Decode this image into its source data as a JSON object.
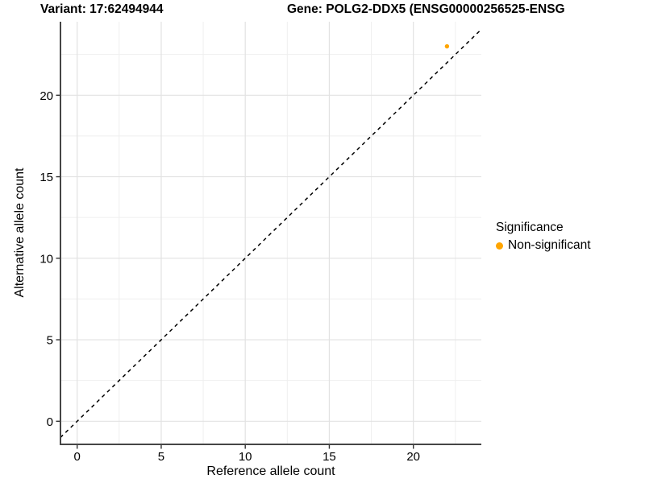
{
  "header": {
    "title_left": "Variant: 17:62494944",
    "title_right": "Gene: POLG2-DDX5 (ENSG00000256525-ENSG"
  },
  "axes": {
    "x_label": "Reference allele count",
    "y_label": "Alternative allele count",
    "x_tick_labels": [
      "0",
      "5",
      "10",
      "15",
      "20"
    ],
    "y_tick_labels": [
      "0",
      "5",
      "10",
      "15",
      "20"
    ]
  },
  "legend": {
    "title": "Significance",
    "items": [
      {
        "label": "Non-significant",
        "color": "#FFA500"
      }
    ]
  },
  "colors": {
    "point": "#FFA500",
    "grid_major": "#e2e2e2",
    "grid_minor": "#efefef",
    "axis_line": "#454545",
    "tick_mark": "#333333",
    "text": "#000000",
    "identity_line": "#000000"
  },
  "chart_data": {
    "type": "scatter",
    "title": "Variant: 17:62494944 | Gene: POLG2-DDX5 (ENSG00000256525-ENSG…",
    "xlabel": "Reference allele count",
    "ylabel": "Alternative allele count",
    "x_major_ticks": [
      0,
      5,
      10,
      15,
      20
    ],
    "y_major_ticks": [
      0,
      5,
      10,
      15,
      20
    ],
    "x_minor_gridlines": [
      2.5,
      7.5,
      12.5,
      17.5,
      22.5
    ],
    "y_minor_gridlines": [
      2.5,
      7.5,
      12.5,
      17.5,
      22.5
    ],
    "xlim": [
      -1.0,
      24.0
    ],
    "ylim": [
      -1.45,
      24.5
    ],
    "grid": true,
    "legend_position": "right",
    "series": [
      {
        "name": "Non-significant",
        "color": "#FFA500",
        "points": [
          {
            "x": 22,
            "y": 23
          }
        ]
      }
    ],
    "reference_line": {
      "type": "identity_y_equals_x",
      "style": "dashed",
      "color": "#000000"
    }
  }
}
